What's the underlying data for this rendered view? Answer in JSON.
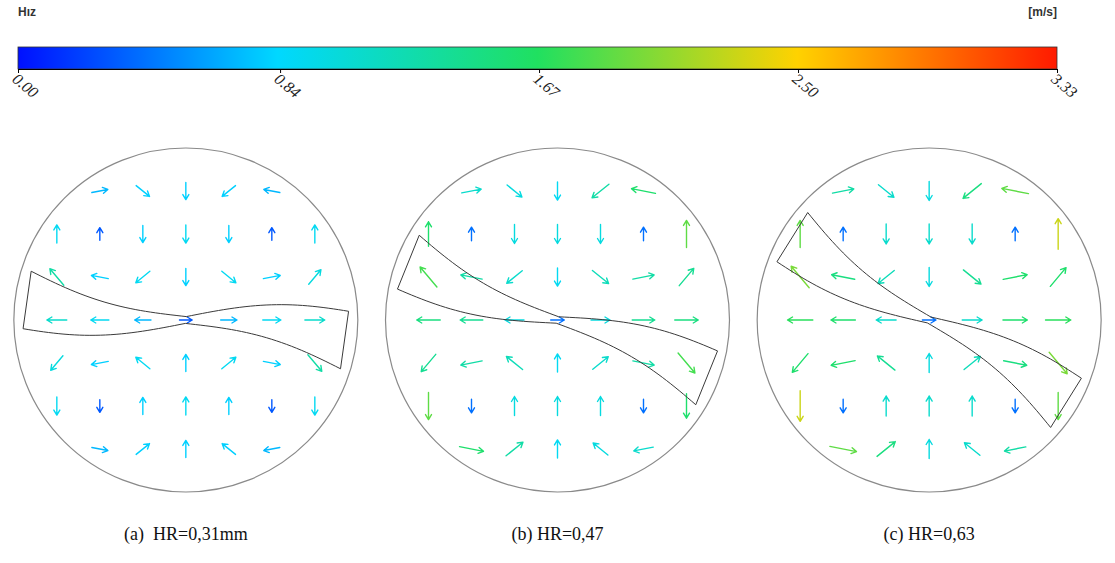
{
  "chart_data": {
    "type": "vector_field",
    "colorbar": {
      "title": "Hız",
      "unit": "[m/s]",
      "range": [
        0,
        3.33
      ],
      "ticks": [
        {
          "value": 0,
          "label": "0.00"
        },
        0.84,
        1.67,
        {
          "value": 2.5,
          "label": "2.50"
        },
        3.33
      ]
    },
    "xlim": [
      -1,
      1
    ],
    "ylim": [
      -1,
      1
    ],
    "x": [
      -0.75,
      -0.5,
      -0.25,
      0,
      0.25,
      0.5,
      0.75
    ],
    "y": [
      0.75,
      0.5,
      0.25,
      0,
      -0.25,
      -0.5,
      -0.75
    ],
    "panels": [
      {
        "caption": "(a)  HR=0,31mm",
        "speed": [
          [
            null,
            0.7,
            0.8,
            0.8,
            0.8,
            0.7,
            null
          ],
          [
            0.9,
            0.3,
            0.8,
            0.9,
            0.8,
            0.3,
            0.9
          ],
          [
            1.3,
            0.8,
            0.9,
            0.8,
            0.9,
            0.8,
            1.0
          ],
          [
            1.1,
            0.9,
            0.7,
            0.3,
            0.7,
            0.9,
            1.1
          ],
          [
            1.0,
            0.8,
            0.9,
            0.8,
            0.9,
            0.8,
            1.3
          ],
          [
            0.9,
            0.3,
            0.8,
            0.9,
            0.8,
            0.3,
            0.9
          ],
          [
            null,
            0.7,
            0.8,
            0.8,
            0.8,
            0.7,
            null
          ]
        ],
        "angle": [
          [
            null,
            11,
            -39,
            -90,
            -141,
            169,
            null
          ],
          [
            90,
            90,
            -90,
            -90,
            -90,
            90,
            90
          ],
          [
            130,
            169,
            -141,
            -90,
            -39,
            11,
            50
          ],
          [
            180,
            180,
            180,
            0,
            0,
            0,
            0
          ],
          [
            -130,
            -169,
            141,
            90,
            39,
            -11,
            -50
          ],
          [
            -90,
            -90,
            90,
            90,
            90,
            -90,
            -90
          ],
          [
            null,
            -11,
            39,
            90,
            141,
            -169,
            null
          ]
        ]
      },
      {
        "caption": "(b) HR=0,47",
        "speed": [
          [
            null,
            1.1,
            1.0,
            0.9,
            1.3,
            1.6,
            null
          ],
          [
            1.6,
            0.4,
            1.0,
            1.0,
            1.0,
            0.4,
            1.9
          ],
          [
            1.8,
            1.3,
            1.1,
            0.9,
            1.2,
            1.3,
            1.4
          ],
          [
            1.5,
            1.4,
            1.0,
            0.4,
            1.0,
            1.4,
            1.5
          ],
          [
            1.4,
            1.3,
            1.2,
            0.9,
            1.1,
            1.3,
            1.8
          ],
          [
            1.9,
            0.4,
            1.0,
            1.0,
            1.0,
            0.4,
            1.6
          ],
          [
            null,
            1.6,
            1.3,
            0.9,
            1.0,
            1.1,
            null
          ]
        ],
        "angle": [
          [
            null,
            11,
            -39,
            -90,
            -141,
            169,
            null
          ],
          [
            90,
            90,
            -90,
            -90,
            -90,
            90,
            90
          ],
          [
            130,
            169,
            -141,
            -90,
            -39,
            11,
            50
          ],
          [
            180,
            180,
            180,
            0,
            0,
            0,
            0
          ],
          [
            -130,
            -169,
            141,
            90,
            39,
            -11,
            -50
          ],
          [
            -90,
            -90,
            90,
            90,
            90,
            -90,
            -90
          ],
          [
            null,
            -11,
            39,
            90,
            141,
            -169,
            null
          ]
        ]
      },
      {
        "caption": "(c) HR=0,63",
        "speed": [
          [
            null,
            1.3,
            1.1,
            1.0,
            1.5,
            1.9,
            null
          ],
          [
            1.9,
            0.4,
            1.1,
            1.1,
            1.1,
            0.4,
            2.3
          ],
          [
            2.0,
            1.5,
            1.2,
            1.0,
            1.4,
            1.6,
            1.6
          ],
          [
            1.7,
            1.6,
            1.1,
            0.4,
            1.1,
            1.6,
            1.7
          ],
          [
            1.6,
            1.6,
            1.4,
            1.0,
            1.2,
            1.5,
            2.0
          ],
          [
            2.3,
            0.4,
            1.1,
            1.1,
            1.1,
            0.4,
            1.9
          ],
          [
            null,
            1.9,
            1.5,
            1.0,
            1.1,
            1.3,
            null
          ]
        ],
        "angle": [
          [
            null,
            11,
            -39,
            -90,
            -141,
            169,
            null
          ],
          [
            90,
            90,
            -90,
            -90,
            -90,
            90,
            90
          ],
          [
            130,
            169,
            -141,
            -90,
            -39,
            11,
            50
          ],
          [
            180,
            180,
            180,
            0,
            0,
            0,
            0
          ],
          [
            -130,
            -169,
            141,
            90,
            39,
            -11,
            -50
          ],
          [
            -90,
            -90,
            90,
            90,
            90,
            -90,
            -90
          ],
          [
            null,
            -11,
            39,
            90,
            141,
            -169,
            null
          ]
        ]
      }
    ]
  }
}
